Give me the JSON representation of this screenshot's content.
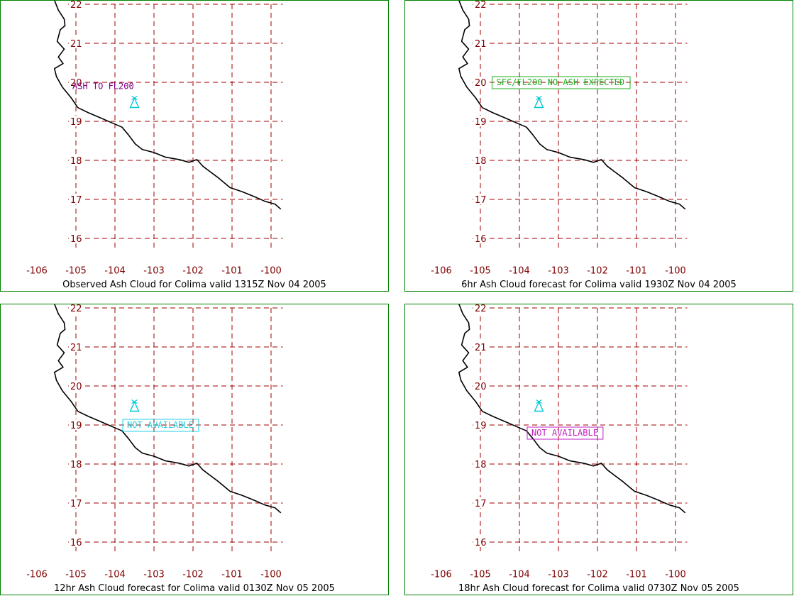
{
  "colors": {
    "grid": "#a00000",
    "tick_text": "#800000",
    "frame": "#008000",
    "coast": "#000000",
    "volcano": "#00c8d8"
  },
  "icons": {
    "volcano": "volcano-triangle-icon"
  },
  "map": {
    "lon_range": [
      -106,
      -99.7
    ],
    "lat_range": [
      15.7,
      22.1
    ],
    "lon_ticks": [
      -106,
      -105,
      -104,
      -103,
      -102,
      -101,
      -100
    ],
    "lat_ticks": [
      16,
      17,
      18,
      19,
      20,
      21,
      22
    ],
    "volcano_location": {
      "lon": -103.5,
      "lat": 19.5
    }
  },
  "panels": [
    {
      "caption": "Observed Ash Cloud for Colima valid 1315Z Nov 04 2005",
      "note": {
        "text": "ASH TO FL200",
        "color": "#800080",
        "boxed": false,
        "lon": -105.2,
        "lat": 19.9
      }
    },
    {
      "caption": "6hr Ash Cloud forecast for Colima valid 1930Z Nov 04 2005",
      "note": {
        "text": "SFC/FL200 NO ASH EXPECTED",
        "color": "#20b020",
        "boxed": true,
        "lon": -104.7,
        "lat": 20.0
      }
    },
    {
      "caption": "12hr Ash Cloud forecast for Colima valid 0130Z Nov 05 2005",
      "note": {
        "text": "NOT AVAILABLE",
        "color": "#20d0e0",
        "boxed": true,
        "lon": -103.8,
        "lat": 19.0
      }
    },
    {
      "caption": "18hr Ash Cloud forecast for Colima valid 0730Z Nov 05 2005",
      "note": {
        "text": "NOT AVAILABLE",
        "color": "#c020c0",
        "boxed": true,
        "lon": -103.8,
        "lat": 18.8
      }
    }
  ],
  "coastline": [
    [
      -105.55,
      22.1
    ],
    [
      -105.45,
      21.85
    ],
    [
      -105.3,
      21.62
    ],
    [
      -105.28,
      21.45
    ],
    [
      -105.4,
      21.35
    ],
    [
      -105.48,
      21.05
    ],
    [
      -105.3,
      20.85
    ],
    [
      -105.45,
      20.65
    ],
    [
      -105.33,
      20.48
    ],
    [
      -105.55,
      20.35
    ],
    [
      -105.5,
      20.15
    ],
    [
      -105.35,
      19.88
    ],
    [
      -105.12,
      19.6
    ],
    [
      -104.95,
      19.35
    ],
    [
      -104.68,
      19.22
    ],
    [
      -104.35,
      19.08
    ],
    [
      -104.05,
      18.95
    ],
    [
      -103.82,
      18.85
    ],
    [
      -103.65,
      18.65
    ],
    [
      -103.48,
      18.42
    ],
    [
      -103.3,
      18.28
    ],
    [
      -103.0,
      18.2
    ],
    [
      -102.7,
      18.08
    ],
    [
      -102.35,
      18.02
    ],
    [
      -102.1,
      17.95
    ],
    [
      -101.9,
      18.02
    ],
    [
      -101.75,
      17.85
    ],
    [
      -101.55,
      17.7
    ],
    [
      -101.35,
      17.55
    ],
    [
      -101.05,
      17.3
    ],
    [
      -100.75,
      17.2
    ],
    [
      -100.45,
      17.08
    ],
    [
      -100.15,
      16.95
    ],
    [
      -99.9,
      16.88
    ],
    [
      -99.75,
      16.75
    ]
  ]
}
